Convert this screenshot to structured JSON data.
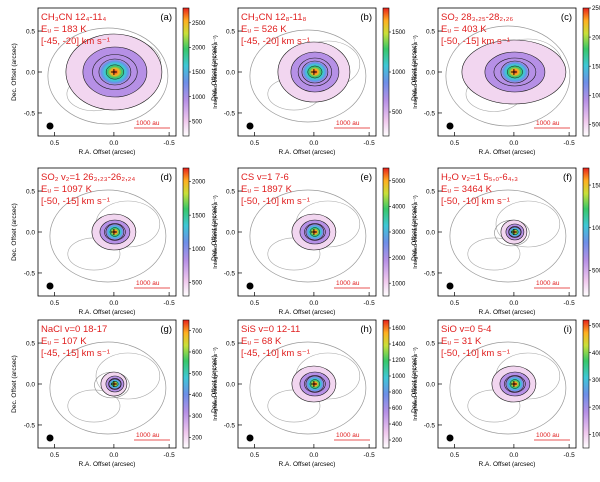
{
  "chart_data": [
    {
      "type": "heatmap",
      "panel": "(a)",
      "line_label": "CH₃CN 12₄-11₄",
      "eu": "Eᵤ = 183 K",
      "vrange": "[-45, -20] km s⁻¹",
      "colorbar_ticks": [
        500,
        1000,
        1500,
        2000,
        2500
      ],
      "vmin": 200,
      "vmax": 2800,
      "colorbar_label": "Integrated Intensity (K km s⁻¹)",
      "xlabel": "R.A. Offset (arcsec)",
      "ylabel": "Dec. Offset (arcsec)",
      "x_ticks": [
        "0.5",
        "0.0",
        "-0.5"
      ],
      "y_ticks": [
        "0.5",
        "0.0",
        "-0.5"
      ],
      "scalebar": "1000 au",
      "extent": "large"
    },
    {
      "type": "heatmap",
      "panel": "(b)",
      "line_label": "CH₃CN 12₈-11₈",
      "eu": "Eᵤ = 526 K",
      "vrange": "[-45, -20] km s⁻¹",
      "colorbar_ticks": [
        500,
        1000,
        1500
      ],
      "vmin": 200,
      "vmax": 1800,
      "colorbar_label": "Integrated Intensity (K km s⁻¹)",
      "xlabel": "R.A. Offset (arcsec)",
      "ylabel": "Dec. Offset (arcsec)",
      "x_ticks": [
        "0.5",
        "0.0",
        "-0.5"
      ],
      "y_ticks": [
        "0.5",
        "0.0",
        "-0.5"
      ],
      "scalebar": "1000 au",
      "extent": "medium"
    },
    {
      "type": "heatmap",
      "panel": "(c)",
      "line_label": "SO₂ 28₃,₂₅-28₂,₂₆",
      "eu": "Eᵤ = 403 K",
      "vrange": "[-50, -15] km s⁻¹",
      "colorbar_ticks": [
        500,
        1000,
        1500,
        2000,
        2500
      ],
      "vmin": 300,
      "vmax": 2500,
      "colorbar_label": "Integrated Intensity (K km s⁻¹)",
      "xlabel": "R.A. Offset (arcsec)",
      "ylabel": "Dec. Offset (arcsec)",
      "x_ticks": [
        "0.5",
        "0.0",
        "-0.5"
      ],
      "y_ticks": [
        "0.5",
        "0.0",
        "-0.5"
      ],
      "scalebar": "1000 au",
      "extent": "wide"
    },
    {
      "type": "heatmap",
      "panel": "(d)",
      "line_label": "SO₂ v₂=1 26₃,₂₃-26₂,₂₄",
      "eu": "Eᵤ = 1097 K",
      "vrange": "[-50, -15] km s⁻¹",
      "colorbar_ticks": [
        500,
        1000,
        1500,
        2000
      ],
      "vmin": 300,
      "vmax": 2200,
      "colorbar_label": "Integrated Intensity (K km s⁻¹)",
      "xlabel": "R.A. Offset (arcsec)",
      "ylabel": "Dec. Offset (arcsec)",
      "x_ticks": [
        "0.5",
        "0.0",
        "-0.5"
      ],
      "y_ticks": [
        "0.5",
        "0.0",
        "-0.5"
      ],
      "scalebar": "1000 au",
      "extent": "small"
    },
    {
      "type": "heatmap",
      "panel": "(e)",
      "line_label": "CS v=1 7-6",
      "eu": "Eᵤ = 1897 K",
      "vrange": "[-50, -10] km s⁻¹",
      "colorbar_ticks": [
        1000,
        2000,
        3000,
        4000,
        5000
      ],
      "vmin": 500,
      "vmax": 5500,
      "colorbar_label": "Integrated Intensity (K km s⁻¹)",
      "xlabel": "R.A. Offset (arcsec)",
      "ylabel": "Dec. Offset (arcsec)",
      "x_ticks": [
        "0.5",
        "0.0",
        "-0.5"
      ],
      "y_ticks": [
        "0.5",
        "0.0",
        "-0.5"
      ],
      "scalebar": "1000 au",
      "extent": "small"
    },
    {
      "type": "heatmap",
      "panel": "(f)",
      "line_label": "H₂O v₂=1 5₅,₀-6₄,₃",
      "eu": "Eᵤ = 3464 K",
      "vrange": "[-50, -10] km s⁻¹",
      "colorbar_ticks": [
        500,
        1000,
        1500
      ],
      "vmin": 200,
      "vmax": 1700,
      "colorbar_label": "Integrated Intensity (K km s⁻¹)",
      "xlabel": "R.A. Offset (arcsec)",
      "ylabel": "Dec. Offset (arcsec)",
      "x_ticks": [
        "0.5",
        "0.0",
        "-0.5"
      ],
      "y_ticks": [
        "0.5",
        "0.0",
        "-0.5"
      ],
      "scalebar": "1000 au",
      "extent": "tiny"
    },
    {
      "type": "heatmap",
      "panel": "(g)",
      "line_label": "NaCl v=0 18-17",
      "eu": "Eᵤ = 107 K",
      "vrange": "[-45, -15] km s⁻¹",
      "colorbar_ticks": [
        200,
        300,
        400,
        500,
        600,
        700
      ],
      "vmin": 150,
      "vmax": 750,
      "colorbar_label": "Integrated Intensity (K km s⁻¹)",
      "xlabel": "R.A. Offset (arcsec)",
      "ylabel": "Dec. Offset (arcsec)",
      "x_ticks": [
        "0.5",
        "0.0",
        "-0.5"
      ],
      "y_ticks": [
        "0.5",
        "0.0",
        "-0.5"
      ],
      "scalebar": "1000 au",
      "extent": "tiny"
    },
    {
      "type": "heatmap",
      "panel": "(h)",
      "line_label": "SiS v=0 12-11",
      "eu": "Eᵤ = 68 K",
      "vrange": "[-45, -10] km s⁻¹",
      "colorbar_ticks": [
        200,
        400,
        600,
        800,
        1000,
        1200,
        1400,
        1600
      ],
      "vmin": 100,
      "vmax": 1700,
      "colorbar_label": "Integrated Intensity (K km s⁻¹)",
      "xlabel": "R.A. Offset (arcsec)",
      "ylabel": "Dec. Offset (arcsec)",
      "x_ticks": [
        "0.5",
        "0.0",
        "-0.5"
      ],
      "y_ticks": [
        "0.5",
        "0.0",
        "-0.5"
      ],
      "scalebar": "1000 au",
      "extent": "small"
    },
    {
      "type": "heatmap",
      "panel": "(i)",
      "line_label": "SiO v=0 5-4",
      "eu": "Eᵤ = 31 K",
      "vrange": "[-50, -10] km s⁻¹",
      "colorbar_ticks": [
        1000,
        2000,
        3000,
        4000,
        5000
      ],
      "vmin": 500,
      "vmax": 5200,
      "colorbar_label": "Integrated Intensity (K km s⁻¹)",
      "xlabel": "R.A. Offset (arcsec)",
      "ylabel": "Dec. Offset (arcsec)",
      "x_ticks": [
        "0.5",
        "0.0",
        "-0.5"
      ],
      "y_ticks": [
        "0.5",
        "0.0",
        "-0.5"
      ],
      "scalebar": "1000 au",
      "extent": "small"
    }
  ]
}
